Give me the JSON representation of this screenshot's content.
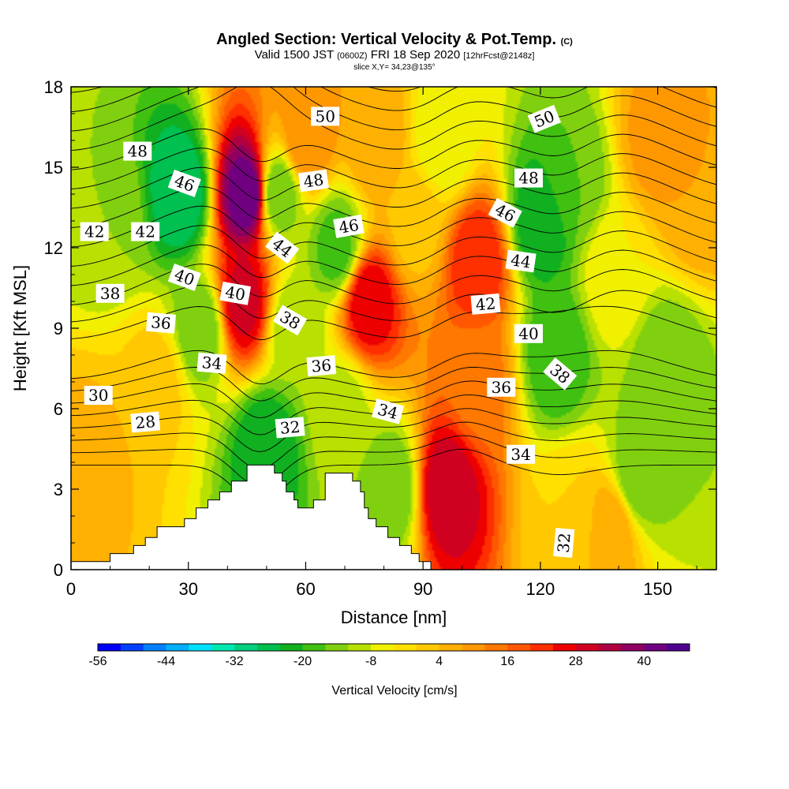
{
  "header": {
    "title": "Angled Section: Vertical Velocity & Pot.Temp.",
    "title_mark": "(C)",
    "valid_prefix": "Valid 1500 JST",
    "valid_zulu": "(0600Z)",
    "valid_date": "FRI 18 Sep 2020",
    "forecast": "[12hrFcst@2148z]",
    "slice": "slice X,Y= 34,23@135°"
  },
  "chart_data": {
    "type": "heatmap",
    "xlabel": "Distance [nm]",
    "ylabel": "Height [Kft MSL]",
    "xlim": [
      0,
      165
    ],
    "ylim": [
      0,
      18
    ],
    "x_ticks": [
      0,
      30,
      60,
      90,
      120,
      150
    ],
    "y_ticks": [
      0,
      3,
      6,
      9,
      12,
      15,
      18
    ],
    "colorbar": {
      "title": "Vertical Velocity [cm/s]",
      "min": -56,
      "max": 48,
      "step": 4,
      "tick_values": [
        -56,
        -44,
        -32,
        -20,
        -8,
        4,
        16,
        28,
        40
      ],
      "colors": [
        "#0000ff",
        "#0040ff",
        "#0080ff",
        "#00b0ff",
        "#00e0ff",
        "#00e8b0",
        "#00d080",
        "#00c050",
        "#10b020",
        "#40c010",
        "#80d010",
        "#b8e000",
        "#f0f000",
        "#ffe000",
        "#ffc800",
        "#ffb000",
        "#ff9800",
        "#ff7800",
        "#ff5800",
        "#ff3000",
        "#ee0000",
        "#d00020",
        "#b00040",
        "#900060",
        "#700080",
        "#500090"
      ]
    },
    "velocity_field": [
      {
        "x": 10,
        "z": 13,
        "w": -12
      },
      {
        "x": 28,
        "z": 14,
        "w": -28
      },
      {
        "x": 33,
        "z": 9,
        "w": -16
      },
      {
        "x": 22,
        "z": 7,
        "w": 2
      },
      {
        "x": 45,
        "z": 14,
        "w": 44
      },
      {
        "x": 44,
        "z": 10,
        "w": 30
      },
      {
        "x": 50,
        "z": 4.5,
        "w": -24
      },
      {
        "x": 53,
        "z": 14,
        "w": -16
      },
      {
        "x": 57,
        "z": 9,
        "w": -12
      },
      {
        "x": 60,
        "z": 16,
        "w": 12
      },
      {
        "x": 68,
        "z": 12,
        "w": -18
      },
      {
        "x": 69,
        "z": 6,
        "w": -10
      },
      {
        "x": 76,
        "z": 10,
        "w": 28
      },
      {
        "x": 78,
        "z": 16,
        "w": 8
      },
      {
        "x": 82,
        "z": 3,
        "w": -16
      },
      {
        "x": 88,
        "z": 13,
        "w": 2
      },
      {
        "x": 96,
        "z": 3,
        "w": 32
      },
      {
        "x": 95,
        "z": 16,
        "w": -8
      },
      {
        "x": 104,
        "z": 11.5,
        "w": 24
      },
      {
        "x": 104,
        "z": 7,
        "w": 14
      },
      {
        "x": 120,
        "z": 13,
        "w": -24
      },
      {
        "x": 124,
        "z": 8,
        "w": -20
      },
      {
        "x": 128,
        "z": 14.5,
        "w": -16
      },
      {
        "x": 139,
        "z": 11,
        "w": -4
      },
      {
        "x": 145,
        "z": 3.5,
        "w": -16
      },
      {
        "x": 152,
        "z": 7.5,
        "w": -16
      },
      {
        "x": 150,
        "z": 16,
        "w": 10
      },
      {
        "x": 160,
        "z": 14,
        "w": 8
      },
      {
        "x": 128,
        "z": 2,
        "w": 0
      },
      {
        "x": 5,
        "z": 4,
        "w": 6
      },
      {
        "x": 138,
        "z": 1.5,
        "w": 8
      }
    ],
    "terrain": [
      [
        0,
        0.3
      ],
      [
        10,
        0.3
      ],
      [
        10,
        0.6
      ],
      [
        16,
        0.6
      ],
      [
        16,
        0.9
      ],
      [
        19,
        0.9
      ],
      [
        19,
        1.2
      ],
      [
        22,
        1.2
      ],
      [
        22,
        1.6
      ],
      [
        29,
        1.6
      ],
      [
        29,
        1.9
      ],
      [
        32,
        1.9
      ],
      [
        32,
        2.3
      ],
      [
        35,
        2.3
      ],
      [
        35,
        2.6
      ],
      [
        38,
        2.6
      ],
      [
        38,
        2.9
      ],
      [
        41,
        2.9
      ],
      [
        41,
        3.3
      ],
      [
        45,
        3.3
      ],
      [
        45,
        3.9
      ],
      [
        52,
        3.9
      ],
      [
        52,
        3.6
      ],
      [
        54,
        3.6
      ],
      [
        54,
        3.3
      ],
      [
        55,
        3.3
      ],
      [
        55,
        2.9
      ],
      [
        57,
        2.9
      ],
      [
        57,
        2.6
      ],
      [
        58,
        2.6
      ],
      [
        58,
        2.3
      ],
      [
        62,
        2.3
      ],
      [
        62,
        2.6
      ],
      [
        65,
        2.6
      ],
      [
        65,
        3.6
      ],
      [
        72,
        3.6
      ],
      [
        72,
        3.3
      ],
      [
        74,
        3.3
      ],
      [
        74,
        2.9
      ],
      [
        75,
        2.9
      ],
      [
        75,
        2.3
      ],
      [
        76,
        2.3
      ],
      [
        76,
        1.9
      ],
      [
        78,
        1.9
      ],
      [
        78,
        1.6
      ],
      [
        81,
        1.6
      ],
      [
        81,
        1.2
      ],
      [
        84,
        1.2
      ],
      [
        84,
        0.9
      ],
      [
        87,
        0.9
      ],
      [
        87,
        0.6
      ],
      [
        89,
        0.6
      ],
      [
        89,
        0.3
      ],
      [
        92,
        0.3
      ],
      [
        92,
        0
      ]
    ],
    "theta_contours": {
      "min": 26,
      "max": 52,
      "interval": 1,
      "labels": [
        {
          "text": "50",
          "x": 65,
          "z": 16.9,
          "angle": 0
        },
        {
          "text": "50",
          "x": 121,
          "z": 16.8,
          "angle": -22
        },
        {
          "text": "48",
          "x": 17,
          "z": 15.6,
          "angle": 0
        },
        {
          "text": "48",
          "x": 62,
          "z": 14.5,
          "angle": -8
        },
        {
          "text": "48",
          "x": 117,
          "z": 14.6,
          "angle": 0
        },
        {
          "text": "46",
          "x": 29,
          "z": 14.4,
          "angle": 20
        },
        {
          "text": "46",
          "x": 71,
          "z": 12.8,
          "angle": -10
        },
        {
          "text": "46",
          "x": 111,
          "z": 13.3,
          "angle": 28
        },
        {
          "text": "44",
          "x": 54,
          "z": 12.0,
          "angle": 38
        },
        {
          "text": "44",
          "x": 115,
          "z": 11.5,
          "angle": 8
        },
        {
          "text": "42",
          "x": 6,
          "z": 12.6,
          "angle": 0
        },
        {
          "text": "42",
          "x": 19,
          "z": 12.6,
          "angle": 0
        },
        {
          "text": "42",
          "x": 106,
          "z": 9.9,
          "angle": -5
        },
        {
          "text": "40",
          "x": 29,
          "z": 10.9,
          "angle": 20
        },
        {
          "text": "40",
          "x": 42,
          "z": 10.3,
          "angle": 10
        },
        {
          "text": "40",
          "x": 117,
          "z": 8.8,
          "angle": 0
        },
        {
          "text": "38",
          "x": 10,
          "z": 10.3,
          "angle": 0
        },
        {
          "text": "38",
          "x": 56,
          "z": 9.3,
          "angle": 30
        },
        {
          "text": "38",
          "x": 125,
          "z": 7.3,
          "angle": 40
        },
        {
          "text": "36",
          "x": 23,
          "z": 9.2,
          "angle": 5
        },
        {
          "text": "36",
          "x": 64,
          "z": 7.6,
          "angle": -5
        },
        {
          "text": "36",
          "x": 110,
          "z": 6.8,
          "angle": 0
        },
        {
          "text": "34",
          "x": 36,
          "z": 7.7,
          "angle": 5
        },
        {
          "text": "34",
          "x": 81,
          "z": 5.9,
          "angle": 15
        },
        {
          "text": "34",
          "x": 115,
          "z": 4.3,
          "angle": 0
        },
        {
          "text": "32",
          "x": 56,
          "z": 5.3,
          "angle": -5
        },
        {
          "text": "32",
          "x": 126,
          "z": 1.0,
          "angle": -85
        },
        {
          "text": "30",
          "x": 7,
          "z": 6.5,
          "angle": 0
        },
        {
          "text": "28",
          "x": 19,
          "z": 5.5,
          "angle": -5
        }
      ]
    }
  }
}
